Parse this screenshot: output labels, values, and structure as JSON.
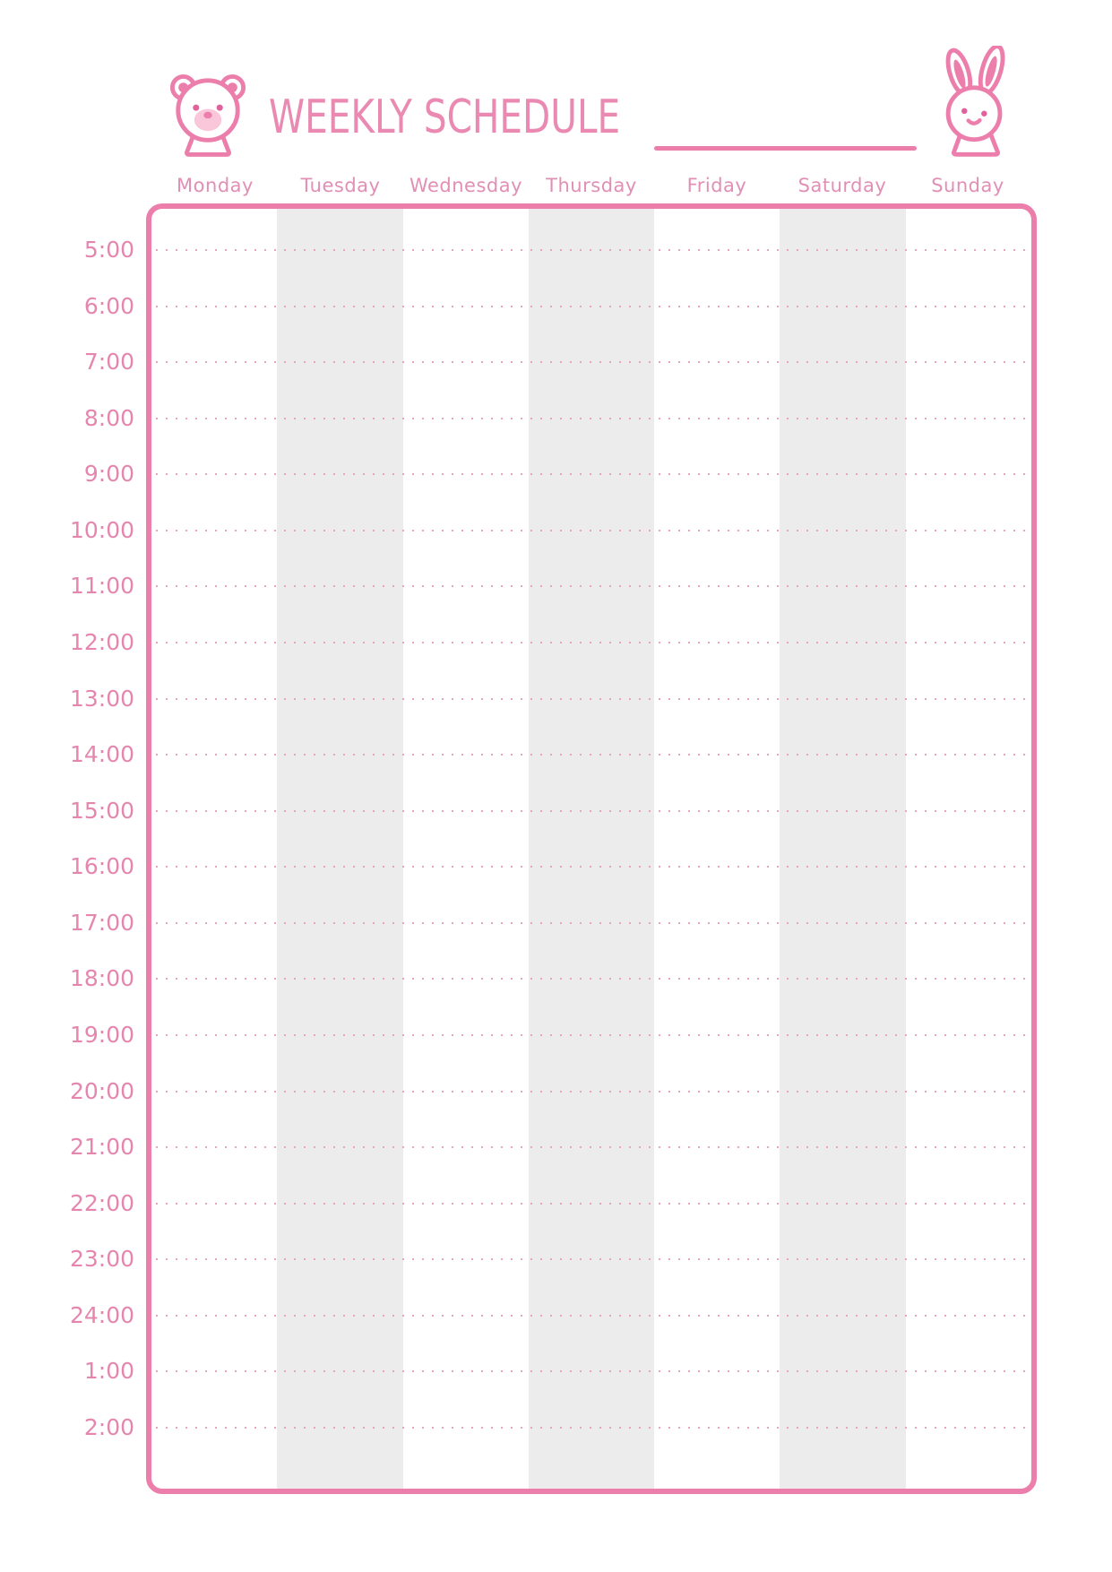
{
  "header": {
    "title": "WEEKLY SCHEDULE",
    "name_line_value": "",
    "bear_icon": "bear-icon",
    "bunny_icon": "rabbit-icon"
  },
  "colors": {
    "accent_pink": "#ec7eac",
    "title_pink": "#ea89b1",
    "day_label_pink": "#e18fb5",
    "time_label_pink": "#e586af",
    "dot_pink": "#e8a3c0",
    "stripe_gray": "#ececec",
    "light_pink_fill": "#f9c6da"
  },
  "days": [
    {
      "label": "Monday",
      "shaded": false
    },
    {
      "label": "Tuesday",
      "shaded": true
    },
    {
      "label": "Wednesday",
      "shaded": false
    },
    {
      "label": "Thursday",
      "shaded": true
    },
    {
      "label": "Friday",
      "shaded": false
    },
    {
      "label": "Saturday",
      "shaded": true
    },
    {
      "label": "Sunday",
      "shaded": false
    }
  ],
  "times": [
    "5:00",
    "6:00",
    "7:00",
    "8:00",
    "9:00",
    "10:00",
    "11:00",
    "12:00",
    "13:00",
    "14:00",
    "15:00",
    "16:00",
    "17:00",
    "18:00",
    "19:00",
    "20:00",
    "21:00",
    "22:00",
    "23:00",
    "24:00",
    "1:00",
    "2:00"
  ]
}
